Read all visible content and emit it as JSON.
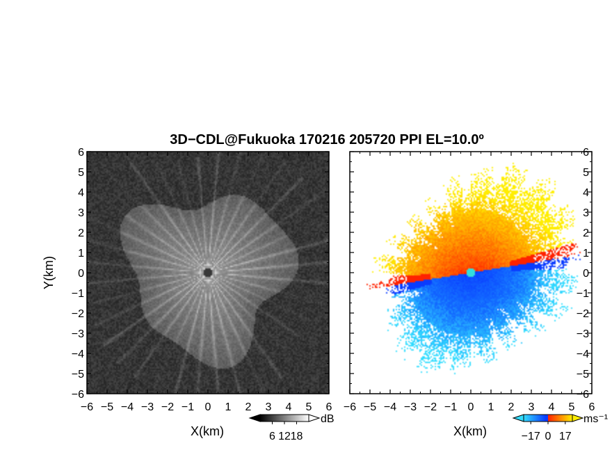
{
  "title": "3D−CDL@Fukuoka 170216 205720 PPI EL=10.0º",
  "chart_data": [
    {
      "type": "heatmap",
      "panel": "left",
      "field": "reflectivity / SNR",
      "xlabel": "X(km)",
      "ylabel": "Y(km)",
      "xlim": [
        -6,
        6
      ],
      "ylim": [
        -6,
        6
      ],
      "x_ticks": [
        "−6",
        "−5",
        "−4",
        "−3",
        "−2",
        "−1",
        "0",
        "1",
        "2",
        "3",
        "4",
        "5",
        "6"
      ],
      "y_ticks": [
        "6",
        "5",
        "4",
        "3",
        "2",
        "1",
        "0",
        "−1",
        "−2",
        "−3",
        "−4",
        "−5",
        "−6"
      ],
      "colorbar": {
        "unit": "dB",
        "tick_labels": [
          "6",
          "12",
          "18"
        ],
        "tick_values": [
          6,
          12,
          18
        ],
        "range": [
          0,
          24
        ],
        "colormap": "grayscale",
        "colors": [
          "#000000",
          "#ffffff"
        ]
      },
      "echo_radius_km": 4.0,
      "radar_center": [
        0,
        0
      ]
    },
    {
      "type": "heatmap",
      "panel": "right",
      "field": "Doppler velocity",
      "xlabel": "X(km)",
      "ylabel": "",
      "xlim": [
        -6,
        6
      ],
      "ylim": [
        -6,
        6
      ],
      "x_ticks": [
        "−6",
        "−5",
        "−4",
        "−3",
        "−2",
        "−1",
        "0",
        "1",
        "2",
        "3",
        "4",
        "5",
        "6"
      ],
      "y_ticks": [
        "6",
        "5",
        "4",
        "3",
        "2",
        "1",
        "0",
        "−1",
        "−2",
        "−3",
        "−4",
        "−5",
        "−6"
      ],
      "colorbar": {
        "unit": "ms⁻¹",
        "tick_labels": [
          "−17",
          "0",
          "17"
        ],
        "tick_values": [
          -17,
          0,
          17
        ],
        "range": [
          -24,
          24
        ],
        "colormap": "cyan-blue-red-yellow",
        "colors": [
          "#33ddff",
          "#0a3cff",
          "#ff2200",
          "#ffee00"
        ]
      },
      "positive_velocity_sector": "north / north-east (receding, red-yellow)",
      "negative_velocity_sector": "south / south-west (approaching, blue-cyan)",
      "radar_center": [
        0,
        0
      ]
    }
  ]
}
